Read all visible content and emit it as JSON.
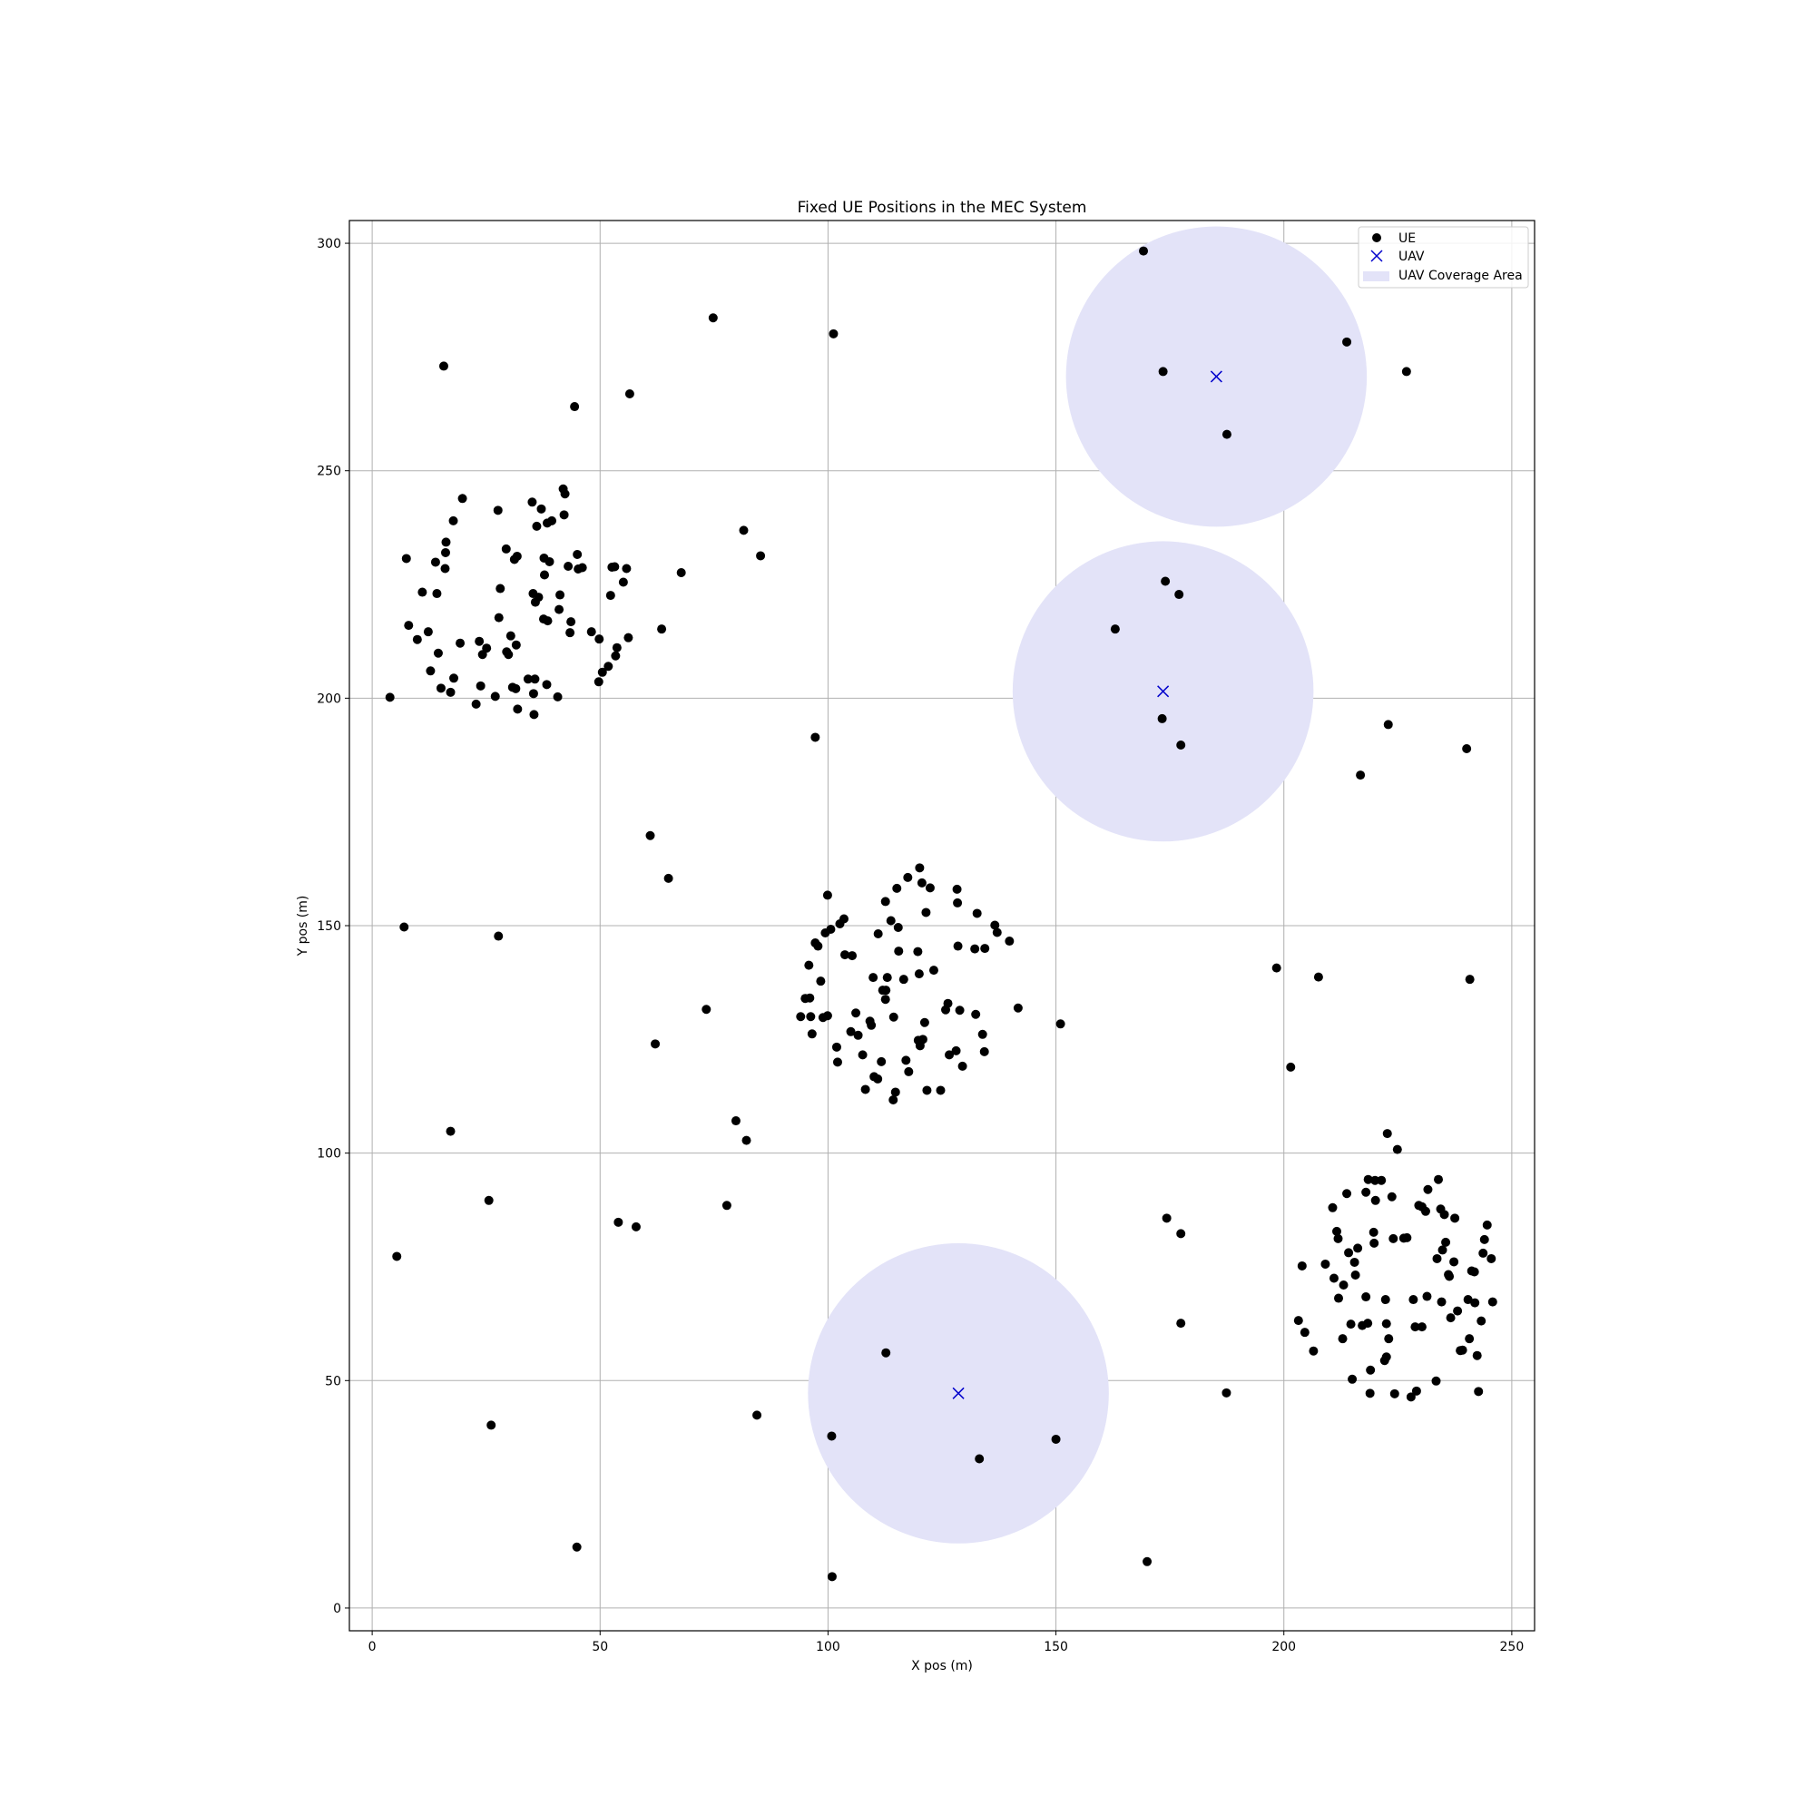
{
  "chart_data": {
    "type": "scatter",
    "title": "Fixed UE Positions in the MEC System",
    "xlabel": "X pos (m)",
    "ylabel": "Y pos (m)",
    "xlim": [
      -5,
      255
    ],
    "ylim": [
      -5,
      305
    ],
    "xticks": [
      0,
      50,
      100,
      150,
      200,
      250
    ],
    "yticks": [
      0,
      50,
      100,
      150,
      200,
      250,
      300
    ],
    "grid": true,
    "legend_position": "top-right",
    "legend": [
      "UE",
      "UAV",
      "UAV Coverage Area"
    ],
    "colors": {
      "ue": "#000000",
      "uav": "#0000cc",
      "coverage": "#e3e3f8",
      "grid": "#b0b0b0"
    },
    "coverage_radius": 33,
    "uav": [
      [
        185.2,
        270.7
      ],
      [
        173.5,
        201.5
      ],
      [
        128.6,
        47.2
      ]
    ],
    "ue": [
      [
        169.2,
        298.3
      ],
      [
        173.5,
        271.8
      ],
      [
        213.8,
        278.3
      ],
      [
        226.9,
        271.8
      ],
      [
        187.5,
        258.0
      ],
      [
        74.8,
        283.6
      ],
      [
        101.2,
        280.1
      ],
      [
        15.7,
        273.0
      ],
      [
        56.5,
        266.9
      ],
      [
        44.4,
        264.1
      ],
      [
        174.0,
        225.7
      ],
      [
        177.0,
        222.8
      ],
      [
        163.0,
        215.2
      ],
      [
        173.3,
        195.5
      ],
      [
        177.4,
        189.7
      ],
      [
        222.9,
        194.2
      ],
      [
        240.1,
        188.9
      ],
      [
        216.8,
        183.1
      ],
      [
        81.5,
        236.9
      ],
      [
        85.2,
        231.3
      ],
      [
        67.8,
        227.6
      ],
      [
        63.5,
        215.2
      ],
      [
        97.2,
        191.4
      ],
      [
        61.0,
        169.8
      ],
      [
        65.0,
        160.4
      ],
      [
        7.0,
        149.7
      ],
      [
        27.7,
        147.7
      ],
      [
        73.3,
        131.6
      ],
      [
        62.1,
        124.0
      ],
      [
        151.0,
        128.4
      ],
      [
        198.4,
        140.7
      ],
      [
        207.6,
        138.7
      ],
      [
        240.8,
        138.2
      ],
      [
        201.5,
        118.9
      ],
      [
        17.2,
        104.8
      ],
      [
        79.8,
        107.1
      ],
      [
        82.1,
        102.8
      ],
      [
        25.6,
        89.6
      ],
      [
        77.8,
        88.5
      ],
      [
        54.0,
        84.8
      ],
      [
        57.9,
        83.8
      ],
      [
        5.4,
        77.3
      ],
      [
        26.1,
        40.2
      ],
      [
        84.4,
        42.4
      ],
      [
        44.9,
        13.4
      ],
      [
        100.8,
        37.8
      ],
      [
        100.9,
        6.9
      ],
      [
        112.7,
        56.1
      ],
      [
        133.2,
        32.8
      ],
      [
        150.0,
        37.1
      ],
      [
        170.0,
        10.2
      ],
      [
        174.3,
        85.7
      ],
      [
        177.4,
        82.3
      ],
      [
        177.4,
        62.6
      ],
      [
        187.4,
        47.3
      ],
      [
        3.9,
        200.2
      ],
      [
        7.5,
        230.7
      ],
      [
        8.0,
        216.0
      ],
      [
        9.9,
        212.9
      ],
      [
        11.0,
        223.3
      ],
      [
        12.3,
        214.6
      ],
      [
        12.8,
        206.0
      ],
      [
        13.9,
        229.9
      ],
      [
        14.2,
        223.0
      ],
      [
        14.5,
        209.9
      ],
      [
        15.1,
        202.2
      ],
      [
        16.0,
        228.5
      ],
      [
        16.1,
        232.0
      ],
      [
        16.2,
        234.3
      ],
      [
        17.2,
        201.3
      ],
      [
        17.8,
        239.0
      ],
      [
        17.9,
        204.4
      ],
      [
        19.3,
        212.1
      ],
      [
        19.8,
        243.9
      ],
      [
        22.8,
        198.7
      ],
      [
        23.5,
        212.5
      ],
      [
        23.8,
        202.7
      ],
      [
        24.2,
        209.6
      ],
      [
        25.1,
        211.0
      ],
      [
        27.0,
        200.4
      ],
      [
        27.6,
        241.3
      ],
      [
        27.8,
        217.7
      ],
      [
        28.1,
        224.1
      ],
      [
        29.4,
        232.8
      ],
      [
        29.5,
        210.2
      ],
      [
        29.9,
        209.6
      ],
      [
        30.4,
        213.7
      ],
      [
        30.8,
        202.4
      ],
      [
        31.2,
        230.5
      ],
      [
        31.5,
        202.1
      ],
      [
        31.6,
        211.7
      ],
      [
        31.8,
        231.2
      ],
      [
        31.9,
        197.6
      ],
      [
        34.2,
        204.2
      ],
      [
        35.1,
        243.1
      ],
      [
        35.3,
        223.0
      ],
      [
        35.4,
        201.0
      ],
      [
        35.5,
        196.4
      ],
      [
        35.7,
        204.2
      ],
      [
        35.8,
        221.1
      ],
      [
        36.1,
        237.8
      ],
      [
        36.5,
        222.2
      ],
      [
        37.1,
        241.6
      ],
      [
        37.6,
        217.4
      ],
      [
        37.7,
        230.8
      ],
      [
        37.8,
        227.1
      ],
      [
        38.3,
        203.0
      ],
      [
        38.4,
        238.5
      ],
      [
        38.5,
        217.0
      ],
      [
        38.9,
        230.0
      ],
      [
        39.4,
        239.0
      ],
      [
        40.7,
        200.3
      ],
      [
        41.0,
        219.5
      ],
      [
        41.2,
        222.7
      ],
      [
        41.9,
        246.0
      ],
      [
        42.1,
        240.3
      ],
      [
        42.3,
        244.9
      ],
      [
        43.0,
        229.0
      ],
      [
        43.4,
        214.4
      ],
      [
        43.6,
        216.8
      ],
      [
        45.0,
        231.6
      ],
      [
        45.2,
        228.4
      ],
      [
        46.1,
        228.7
      ],
      [
        48.1,
        214.6
      ],
      [
        49.7,
        203.6
      ],
      [
        49.8,
        213.0
      ],
      [
        50.5,
        205.7
      ],
      [
        51.8,
        207.0
      ],
      [
        52.3,
        222.6
      ],
      [
        52.6,
        228.8
      ],
      [
        53.2,
        228.9
      ],
      [
        53.4,
        209.3
      ],
      [
        53.7,
        211.1
      ],
      [
        55.1,
        225.5
      ],
      [
        55.8,
        228.5
      ],
      [
        56.2,
        213.3
      ],
      [
        94.0,
        130.0
      ],
      [
        95.0,
        134.0
      ],
      [
        95.8,
        141.3
      ],
      [
        96.0,
        134.1
      ],
      [
        96.2,
        130.0
      ],
      [
        96.5,
        126.2
      ],
      [
        97.2,
        146.2
      ],
      [
        97.8,
        145.5
      ],
      [
        98.4,
        137.8
      ],
      [
        98.9,
        129.8
      ],
      [
        99.4,
        148.4
      ],
      [
        99.9,
        130.2
      ],
      [
        99.9,
        156.7
      ],
      [
        100.6,
        149.2
      ],
      [
        101.9,
        123.3
      ],
      [
        102.1,
        120.0
      ],
      [
        102.6,
        150.4
      ],
      [
        103.5,
        151.5
      ],
      [
        103.7,
        143.6
      ],
      [
        105.0,
        126.7
      ],
      [
        105.3,
        143.4
      ],
      [
        106.1,
        130.8
      ],
      [
        106.6,
        125.9
      ],
      [
        107.6,
        121.6
      ],
      [
        108.2,
        114.0
      ],
      [
        109.2,
        129.0
      ],
      [
        109.5,
        128.1
      ],
      [
        109.9,
        138.6
      ],
      [
        110.1,
        116.8
      ],
      [
        110.9,
        116.3
      ],
      [
        111.0,
        148.2
      ],
      [
        111.7,
        120.1
      ],
      [
        112.0,
        135.8
      ],
      [
        112.6,
        155.3
      ],
      [
        112.6,
        133.8
      ],
      [
        112.7,
        135.8
      ],
      [
        113.0,
        138.6
      ],
      [
        113.8,
        151.1
      ],
      [
        114.3,
        111.7
      ],
      [
        114.4,
        129.9
      ],
      [
        114.8,
        113.4
      ],
      [
        115.1,
        158.2
      ],
      [
        115.4,
        149.6
      ],
      [
        115.5,
        144.4
      ],
      [
        116.6,
        138.2
      ],
      [
        117.1,
        120.4
      ],
      [
        117.5,
        160.6
      ],
      [
        117.7,
        117.9
      ],
      [
        119.7,
        144.3
      ],
      [
        119.8,
        124.8
      ],
      [
        120.0,
        139.4
      ],
      [
        120.1,
        162.7
      ],
      [
        120.2,
        123.6
      ],
      [
        120.6,
        159.4
      ],
      [
        120.8,
        125.0
      ],
      [
        121.2,
        128.7
      ],
      [
        121.5,
        152.9
      ],
      [
        121.7,
        113.8
      ],
      [
        122.4,
        158.3
      ],
      [
        123.2,
        140.2
      ],
      [
        124.7,
        113.8
      ],
      [
        125.8,
        131.5
      ],
      [
        126.3,
        132.9
      ],
      [
        126.6,
        121.6
      ],
      [
        128.1,
        122.5
      ],
      [
        128.3,
        158.0
      ],
      [
        128.4,
        155.0
      ],
      [
        128.5,
        145.5
      ],
      [
        128.9,
        131.4
      ],
      [
        129.5,
        119.1
      ],
      [
        132.2,
        144.9
      ],
      [
        132.4,
        130.5
      ],
      [
        132.7,
        152.7
      ],
      [
        133.9,
        126.1
      ],
      [
        134.3,
        122.3
      ],
      [
        134.4,
        145.0
      ],
      [
        136.6,
        150.1
      ],
      [
        137.1,
        148.5
      ],
      [
        139.8,
        146.6
      ],
      [
        141.7,
        131.9
      ],
      [
        203.2,
        63.2
      ],
      [
        204.0,
        75.2
      ],
      [
        204.6,
        60.6
      ],
      [
        206.5,
        56.5
      ],
      [
        209.1,
        75.6
      ],
      [
        210.7,
        88.0
      ],
      [
        211.0,
        72.5
      ],
      [
        211.6,
        82.8
      ],
      [
        211.9,
        81.2
      ],
      [
        212.0,
        68.1
      ],
      [
        212.9,
        59.2
      ],
      [
        213.1,
        71.0
      ],
      [
        213.8,
        91.1
      ],
      [
        214.2,
        78.1
      ],
      [
        214.7,
        62.4
      ],
      [
        215.0,
        50.3
      ],
      [
        215.5,
        76.0
      ],
      [
        215.7,
        73.2
      ],
      [
        216.2,
        79.1
      ],
      [
        217.2,
        62.1
      ],
      [
        218.0,
        68.4
      ],
      [
        218.0,
        91.4
      ],
      [
        218.4,
        62.6
      ],
      [
        218.5,
        94.2
      ],
      [
        218.9,
        47.2
      ],
      [
        219.0,
        52.3
      ],
      [
        219.7,
        82.6
      ],
      [
        219.8,
        80.2
      ],
      [
        220.0,
        94.0
      ],
      [
        220.1,
        89.6
      ],
      [
        221.4,
        94.0
      ],
      [
        222.1,
        54.4
      ],
      [
        222.3,
        67.8
      ],
      [
        222.5,
        62.5
      ],
      [
        222.5,
        55.2
      ],
      [
        222.7,
        104.3
      ],
      [
        223.0,
        59.2
      ],
      [
        223.7,
        90.4
      ],
      [
        224.0,
        81.2
      ],
      [
        224.3,
        47.1
      ],
      [
        224.9,
        100.8
      ],
      [
        226.3,
        81.3
      ],
      [
        227.0,
        81.4
      ],
      [
        227.9,
        46.4
      ],
      [
        228.4,
        67.8
      ],
      [
        228.8,
        61.8
      ],
      [
        229.1,
        47.7
      ],
      [
        229.6,
        88.5
      ],
      [
        230.3,
        61.8
      ],
      [
        230.3,
        88.2
      ],
      [
        231.1,
        87.2
      ],
      [
        231.4,
        68.5
      ],
      [
        231.6,
        92.0
      ],
      [
        233.4,
        49.9
      ],
      [
        233.6,
        76.8
      ],
      [
        233.9,
        94.2
      ],
      [
        234.4,
        87.7
      ],
      [
        234.6,
        67.3
      ],
      [
        234.8,
        78.7
      ],
      [
        235.2,
        86.5
      ],
      [
        235.5,
        80.4
      ],
      [
        236.1,
        73.3
      ],
      [
        236.3,
        72.9
      ],
      [
        236.6,
        63.8
      ],
      [
        237.3,
        76.1
      ],
      [
        237.5,
        85.7
      ],
      [
        238.1,
        65.3
      ],
      [
        238.7,
        56.6
      ],
      [
        239.2,
        56.7
      ],
      [
        240.4,
        67.8
      ],
      [
        240.7,
        59.2
      ],
      [
        241.2,
        74.1
      ],
      [
        241.8,
        73.9
      ],
      [
        241.9,
        67.1
      ],
      [
        242.4,
        55.5
      ],
      [
        242.7,
        47.6
      ],
      [
        243.3,
        63.1
      ],
      [
        243.7,
        78.0
      ],
      [
        244.0,
        81.0
      ],
      [
        244.6,
        84.2
      ],
      [
        245.5,
        76.8
      ],
      [
        245.8,
        67.3
      ]
    ]
  }
}
